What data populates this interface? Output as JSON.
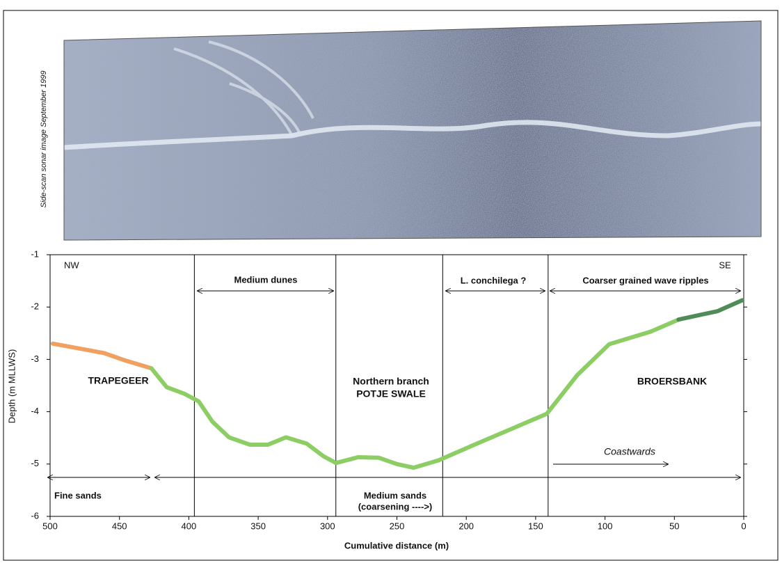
{
  "image_label": "Side-scan sonar image September 1999",
  "chart_data": {
    "type": "line",
    "xlabel": "Cumulative distance (m)",
    "ylabel": "Depth (m MLLWS)",
    "xlim": [
      500,
      0
    ],
    "ylim": [
      -6,
      -1
    ],
    "xticks": [
      500,
      450,
      400,
      350,
      300,
      250,
      200,
      150,
      100,
      50,
      0
    ],
    "yticks": [
      -6,
      -5,
      -4,
      -3,
      -2,
      -1
    ],
    "boundaries": [
      396,
      294,
      217,
      141
    ],
    "series": [
      {
        "color": "#f0a060",
        "x": [
          498,
          461,
          446,
          427
        ],
        "values": [
          -2.7,
          -2.88,
          -3.02,
          -3.17
        ]
      },
      {
        "color": "#8ccd64",
        "x": [
          427,
          416,
          403,
          393,
          383,
          371,
          356,
          343,
          330,
          315,
          303,
          294,
          278,
          263,
          250,
          238,
          220,
          195,
          165,
          142,
          120,
          97,
          67,
          47
        ],
        "values": [
          -3.17,
          -3.53,
          -3.66,
          -3.8,
          -4.19,
          -4.49,
          -4.63,
          -4.63,
          -4.49,
          -4.61,
          -4.85,
          -4.98,
          -4.87,
          -4.88,
          -5.0,
          -5.07,
          -4.93,
          -4.64,
          -4.3,
          -4.04,
          -3.3,
          -2.71,
          -2.47,
          -2.24
        ]
      },
      {
        "color": "#4f8c58",
        "x": [
          47,
          19,
          1
        ],
        "values": [
          -2.24,
          -2.08,
          -1.87
        ]
      }
    ],
    "annotations": {
      "nw": "NW",
      "se": "SE",
      "medium_dunes": "Medium dunes",
      "conchilega": "L. conchilega ?",
      "ripples": "Coarser grained wave ripples",
      "trapegeer": "TRAPEGEER",
      "northern": "Northern branch",
      "potje": "POTJE SWALE",
      "broersbank": "BROERSBANK",
      "coastwards": "Coastwards",
      "fine": "Fine sands",
      "medium": "Medium sands",
      "coarsening": "(coarsening ---->)"
    }
  }
}
